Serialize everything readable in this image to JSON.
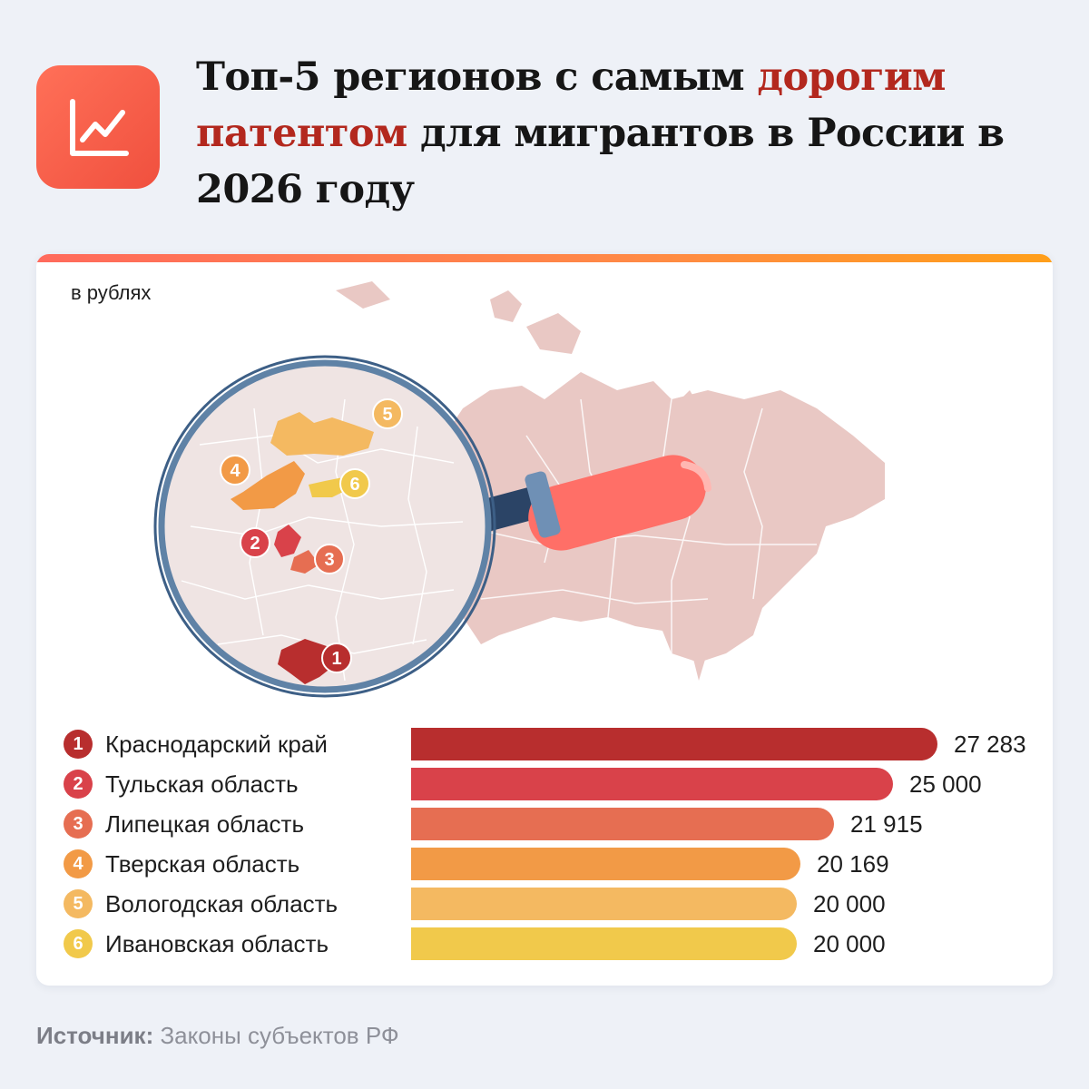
{
  "header": {
    "title_part1": "Топ-5 регионов с самым ",
    "title_accent": "дорогим патентом",
    "title_part2": " для мигрантов в России в 2026 году",
    "logo_icon": "line-chart-icon"
  },
  "colors": {
    "accent": "#b3281e",
    "map_fill": "#e9c8c4",
    "lens_ring": "#5f82a6",
    "handle": "#ff6f67"
  },
  "chart_data": {
    "type": "bar",
    "unit": "в рублях",
    "categories": [
      "Краснодарский край",
      "Тульская область",
      "Липецкая область",
      "Тверская область",
      "Вологодская область",
      "Ивановская область"
    ],
    "ranks": [
      "1",
      "2",
      "3",
      "4",
      "5",
      "6"
    ],
    "values": [
      27283,
      25000,
      21915,
      20169,
      20000,
      20000
    ],
    "value_labels": [
      "27 283",
      "25 000",
      "21 915",
      "20 169",
      "20 000",
      "20 000"
    ],
    "colors": [
      "#b82e2e",
      "#d9424a",
      "#e66e52",
      "#f29a46",
      "#f4b961",
      "#f1c94b"
    ],
    "xlim": [
      0,
      27283
    ]
  },
  "footer": {
    "source_label": "Источник:",
    "source_text": " Законы субъектов РФ"
  }
}
